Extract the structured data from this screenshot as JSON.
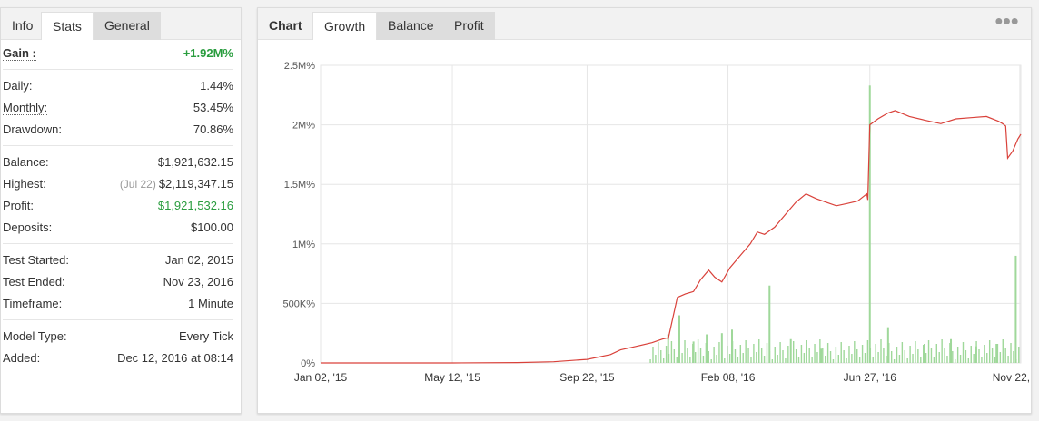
{
  "left_tabs": [
    "Info",
    "Stats",
    "General"
  ],
  "stats": {
    "gain_label": "Gain :",
    "gain_value": "+1.92M%",
    "daily_label": "Daily:",
    "daily_value": "1.44%",
    "monthly_label": "Monthly:",
    "monthly_value": "53.45%",
    "drawdown_label": "Drawdown:",
    "drawdown_value": "70.86%",
    "balance_label": "Balance:",
    "balance_value": "$1,921,632.15",
    "highest_label": "Highest:",
    "highest_date": "(Jul 22)",
    "highest_value": "$2,119,347.15",
    "profit_label": "Profit:",
    "profit_value": "$1,921,532.16",
    "deposits_label": "Deposits:",
    "deposits_value": "$100.00",
    "test_started_label": "Test Started:",
    "test_started_value": "Jan 02, 2015",
    "test_ended_label": "Test Ended:",
    "test_ended_value": "Nov 23, 2016",
    "timeframe_label": "Timeframe:",
    "timeframe_value": "1 Minute",
    "model_type_label": "Model Type:",
    "model_type_value": "Every Tick",
    "added_label": "Added:",
    "added_value": "Dec 12, 2016 at 08:14"
  },
  "right_tabs": [
    "Chart",
    "Growth",
    "Balance",
    "Profit"
  ],
  "menu_icon": "ellipsis-icon",
  "colors": {
    "growth_line": "#d9413a",
    "volume_bars": "#9fd89a",
    "positive": "#2a9d3f"
  },
  "chart_data": {
    "type": "line",
    "y_ticks": [
      "0%",
      "500K%",
      "1M%",
      "1.5M%",
      "2M%",
      "2.5M%"
    ],
    "x_ticks": [
      "Jan 02, '15",
      "May 12, '15",
      "Sep 22, '15",
      "Feb 08, '16",
      "Jun 27, '16",
      "Nov 22, '16"
    ],
    "ylim": [
      0,
      2500000
    ],
    "grid": true,
    "series": [
      {
        "type": "line",
        "x": [
          "2015-01-02",
          "2015-03-01",
          "2015-05-12",
          "2015-07-15",
          "2015-08-20",
          "2015-09-22",
          "2015-10-15",
          "2015-10-25",
          "2015-11-10",
          "2015-11-25",
          "2015-12-05",
          "2015-12-10",
          "2015-12-11",
          "2015-12-20",
          "2015-12-28",
          "2016-01-05",
          "2016-01-12",
          "2016-01-20",
          "2016-01-26",
          "2016-02-02",
          "2016-02-10",
          "2016-02-20",
          "2016-03-01",
          "2016-03-08",
          "2016-03-15",
          "2016-03-25",
          "2016-04-05",
          "2016-04-15",
          "2016-04-25",
          "2016-05-05",
          "2016-05-15",
          "2016-05-25",
          "2016-06-05",
          "2016-06-15",
          "2016-06-24",
          "2016-06-25",
          "2016-06-27",
          "2016-07-05",
          "2016-07-15",
          "2016-07-22",
          "2016-08-05",
          "2016-08-20",
          "2016-09-05",
          "2016-09-20",
          "2016-10-05",
          "2016-10-20",
          "2016-11-01",
          "2016-11-05",
          "2016-11-08",
          "2016-11-10",
          "2016-11-15",
          "2016-11-20",
          "2016-11-23"
        ],
        "values": [
          0,
          0,
          0,
          3000,
          10000,
          30000,
          70000,
          110000,
          140000,
          170000,
          200000,
          210000,
          200000,
          550000,
          580000,
          600000,
          700000,
          780000,
          720000,
          680000,
          800000,
          900000,
          1000000,
          1100000,
          1080000,
          1140000,
          1250000,
          1350000,
          1420000,
          1380000,
          1350000,
          1320000,
          1340000,
          1360000,
          1420000,
          1370000,
          2000000,
          2050000,
          2100000,
          2119347,
          2070000,
          2040000,
          2010000,
          2050000,
          2060000,
          2070000,
          2030000,
          2010000,
          1990000,
          1720000,
          1780000,
          1880000,
          1921532
        ]
      },
      {
        "type": "bar",
        "name": "",
        "x": [
          "2015-12-11",
          "2015-12-22",
          "2016-01-05",
          "2016-01-18",
          "2016-02-02",
          "2016-02-12",
          "2016-03-20",
          "2016-04-10",
          "2016-05-10",
          "2016-06-27",
          "2016-07-15",
          "2016-08-20",
          "2016-09-15",
          "2016-10-10",
          "2016-10-30",
          "2016-11-18"
        ],
        "values": [
          240000,
          400000,
          180000,
          240000,
          250000,
          280000,
          650000,
          200000,
          120000,
          2330000,
          300000,
          160000,
          200000,
          140000,
          160000,
          900000
        ]
      }
    ]
  }
}
